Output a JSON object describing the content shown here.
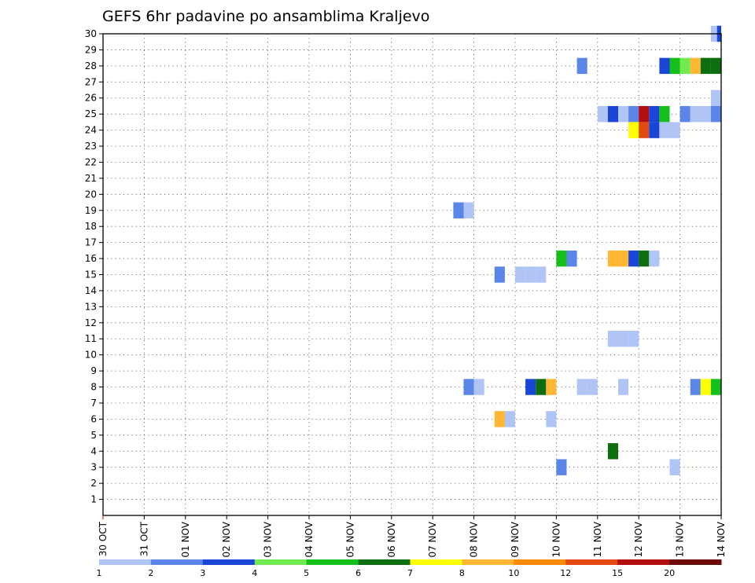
{
  "chart_data": {
    "type": "heatmap",
    "title": "GEFS 6hr padavine po ansamblima Kraljevo",
    "xlabel": "",
    "ylabel": "",
    "x_ticks": [
      "30 OCT",
      "31 OCT",
      "01 NOV",
      "02 NOV",
      "03 NOV",
      "04 NOV",
      "05 NOV",
      "06 NOV",
      "07 NOV",
      "08 NOV",
      "09 NOV",
      "10 NOV",
      "11 NOV",
      "12 NOV",
      "13 NOV",
      "14 NOV"
    ],
    "y_ticks": [
      1,
      2,
      3,
      4,
      5,
      6,
      7,
      8,
      9,
      10,
      11,
      12,
      13,
      14,
      15,
      16,
      17,
      18,
      19,
      20,
      21,
      22,
      23,
      24,
      25,
      26,
      27,
      28,
      29,
      30
    ],
    "x_range_days": [
      0,
      15
    ],
    "y_range": [
      0,
      30
    ],
    "grid": "dotted",
    "legend_position": "bottom",
    "legend": {
      "labels": [
        "1",
        "2",
        "3",
        "4",
        "5",
        "6",
        "7",
        "8",
        "10",
        "12",
        "15",
        "20"
      ],
      "colors": [
        "#b0c4f5",
        "#5b86e8",
        "#1a46d8",
        "#72ea52",
        "#16c01c",
        "#0d6e10",
        "#ffff00",
        "#ffb733",
        "#ff8a00",
        "#e24a10",
        "#b50e0e",
        "#6e0a0a"
      ]
    },
    "cells": [
      {
        "member": 30,
        "day": 14.75,
        "level": 1
      },
      {
        "member": 30,
        "day": 14.9,
        "level": 3
      },
      {
        "member": 28,
        "day": 11.5,
        "level": 2
      },
      {
        "member": 28,
        "day": 13.5,
        "level": 3
      },
      {
        "member": 28,
        "day": 13.75,
        "level": 5
      },
      {
        "member": 28,
        "day": 14.0,
        "level": 4
      },
      {
        "member": 28,
        "day": 14.25,
        "level": 8
      },
      {
        "member": 28,
        "day": 14.5,
        "level": 6
      },
      {
        "member": 28,
        "day": 14.75,
        "level": 6
      },
      {
        "member": 26,
        "day": 14.75,
        "level": 1
      },
      {
        "member": 25,
        "day": 12.0,
        "level": 1
      },
      {
        "member": 25,
        "day": 12.25,
        "level": 3
      },
      {
        "member": 25,
        "day": 12.5,
        "level": 1
      },
      {
        "member": 25,
        "day": 12.75,
        "level": 2
      },
      {
        "member": 25,
        "day": 13.0,
        "level": 11
      },
      {
        "member": 25,
        "day": 13.25,
        "level": 3
      },
      {
        "member": 25,
        "day": 13.5,
        "level": 5
      },
      {
        "member": 25,
        "day": 14.0,
        "level": 2
      },
      {
        "member": 25,
        "day": 14.25,
        "level": 1
      },
      {
        "member": 25,
        "day": 14.5,
        "level": 1
      },
      {
        "member": 25,
        "day": 14.75,
        "level": 2
      },
      {
        "member": 24,
        "day": 12.75,
        "level": 7
      },
      {
        "member": 24,
        "day": 13.0,
        "level": 10
      },
      {
        "member": 24,
        "day": 13.25,
        "level": 3
      },
      {
        "member": 24,
        "day": 13.5,
        "level": 1
      },
      {
        "member": 24,
        "day": 13.75,
        "level": 1
      },
      {
        "member": 19,
        "day": 8.5,
        "level": 2
      },
      {
        "member": 19,
        "day": 8.75,
        "level": 1
      },
      {
        "member": 16,
        "day": 11.0,
        "level": 5
      },
      {
        "member": 16,
        "day": 11.25,
        "level": 2
      },
      {
        "member": 16,
        "day": 12.25,
        "level": 8
      },
      {
        "member": 16,
        "day": 12.5,
        "level": 8
      },
      {
        "member": 16,
        "day": 12.75,
        "level": 3
      },
      {
        "member": 16,
        "day": 13.0,
        "level": 6
      },
      {
        "member": 16,
        "day": 13.25,
        "level": 1
      },
      {
        "member": 15,
        "day": 9.5,
        "level": 2
      },
      {
        "member": 15,
        "day": 10.0,
        "level": 1
      },
      {
        "member": 15,
        "day": 10.25,
        "level": 1
      },
      {
        "member": 15,
        "day": 10.5,
        "level": 1
      },
      {
        "member": 11,
        "day": 12.25,
        "level": 1
      },
      {
        "member": 11,
        "day": 12.5,
        "level": 1
      },
      {
        "member": 11,
        "day": 12.75,
        "level": 1
      },
      {
        "member": 8,
        "day": 8.75,
        "level": 2
      },
      {
        "member": 8,
        "day": 9.0,
        "level": 1
      },
      {
        "member": 8,
        "day": 10.25,
        "level": 3
      },
      {
        "member": 8,
        "day": 10.5,
        "level": 6
      },
      {
        "member": 8,
        "day": 10.75,
        "level": 8
      },
      {
        "member": 8,
        "day": 11.5,
        "level": 1
      },
      {
        "member": 8,
        "day": 11.75,
        "level": 1
      },
      {
        "member": 8,
        "day": 12.5,
        "level": 1
      },
      {
        "member": 8,
        "day": 14.25,
        "level": 2
      },
      {
        "member": 8,
        "day": 14.5,
        "level": 7
      },
      {
        "member": 8,
        "day": 14.75,
        "level": 5
      },
      {
        "member": 6,
        "day": 9.5,
        "level": 8
      },
      {
        "member": 6,
        "day": 9.75,
        "level": 1
      },
      {
        "member": 6,
        "day": 10.75,
        "level": 1
      },
      {
        "member": 4,
        "day": 12.25,
        "level": 6
      },
      {
        "member": 3,
        "day": 11.0,
        "level": 2
      },
      {
        "member": 3,
        "day": 13.75,
        "level": 1
      }
    ]
  }
}
